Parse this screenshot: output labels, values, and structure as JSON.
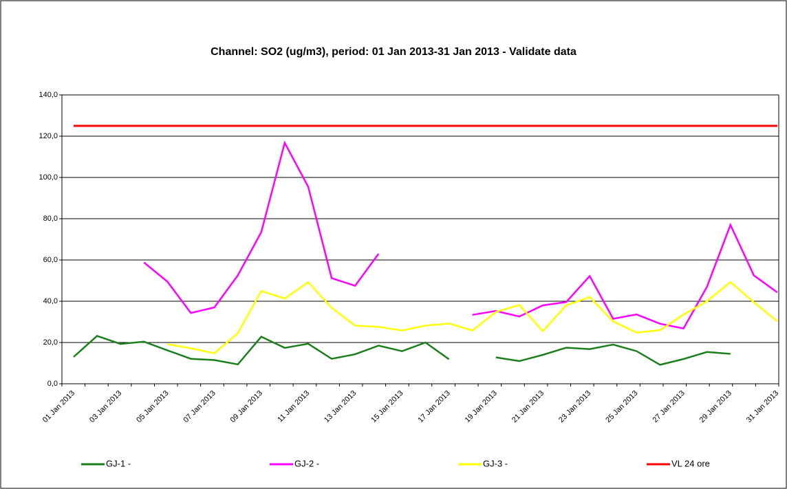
{
  "chart_data": {
    "type": "line",
    "title": "Channel: SO2 (ug/m3), period: 01 Jan 2013-31 Jan 2013 - Validate data",
    "categories": [
      "01 Jan 2013",
      null,
      "03 Jan 2013",
      null,
      "05 Jan 2013",
      null,
      "07 Jan 2013",
      null,
      "09 Jan 2013",
      null,
      "11 Jan 2013",
      null,
      "13 Jan 2013",
      null,
      "15 Jan 2013",
      null,
      "17 Jan 2013",
      null,
      "19 Jan 2013",
      null,
      "21 Jan 2013",
      null,
      "23 Jan 2013",
      null,
      "25 Jan 2013",
      null,
      "27 Jan 2013",
      null,
      "29 Jan 2013",
      null,
      "31 Jan 2013"
    ],
    "series": [
      {
        "name": "GJ-1 -",
        "color": "#1a7f1a",
        "values": [
          13,
          23.2,
          19.3,
          20.4,
          16.2,
          12.1,
          11.5,
          9.4,
          22.8,
          17.4,
          19.4,
          12.1,
          14.3,
          18.5,
          15.8,
          20,
          11.9,
          null,
          12.8,
          11,
          14,
          17.5,
          16.8,
          19,
          15.8,
          9.2,
          12,
          15.4,
          14.5,
          null,
          null
        ]
      },
      {
        "name": "GJ-2 -",
        "color": "#ff00ff",
        "values": [
          null,
          null,
          null,
          58.8,
          49.5,
          34.3,
          37,
          52.5,
          73.5,
          116.8,
          95.5,
          51.2,
          47.5,
          63,
          null,
          null,
          null,
          33.4,
          35.3,
          32.6,
          38,
          39.6,
          52.2,
          31.5,
          33.6,
          29.1,
          26.8,
          47,
          77,
          52.5,
          44.3
        ]
      },
      {
        "name": "GJ-3 -",
        "color": "#ffff00",
        "values": [
          null,
          null,
          null,
          null,
          19.2,
          17.2,
          14.8,
          24.5,
          45,
          41.3,
          49.2,
          36.8,
          28.2,
          27.6,
          25.8,
          28.2,
          29.2,
          25.8,
          34.8,
          38.2,
          25.5,
          38,
          42,
          30.2,
          24.8,
          26,
          33.5,
          40,
          49.3,
          39.5,
          30.2
        ]
      },
      {
        "name": "VL 24 ore",
        "color": "#ff0000",
        "values": [
          125,
          125,
          125,
          125,
          125,
          125,
          125,
          125,
          125,
          125,
          125,
          125,
          125,
          125,
          125,
          125,
          125,
          125,
          125,
          125,
          125,
          125,
          125,
          125,
          125,
          125,
          125,
          125,
          125,
          125,
          125
        ]
      }
    ],
    "ylim": [
      0,
      140
    ],
    "yticks": [
      {
        "value": 0,
        "label": "0,0"
      },
      {
        "value": 20,
        "label": "20,0"
      },
      {
        "value": 40,
        "label": "40,0"
      },
      {
        "value": 60,
        "label": "60,0"
      },
      {
        "value": 80,
        "label": "80,0"
      },
      {
        "value": 100,
        "label": "100,0"
      },
      {
        "value": 120,
        "label": "120,0"
      },
      {
        "value": 140,
        "label": "140,0"
      }
    ],
    "grid": true,
    "legend": "bottom"
  }
}
